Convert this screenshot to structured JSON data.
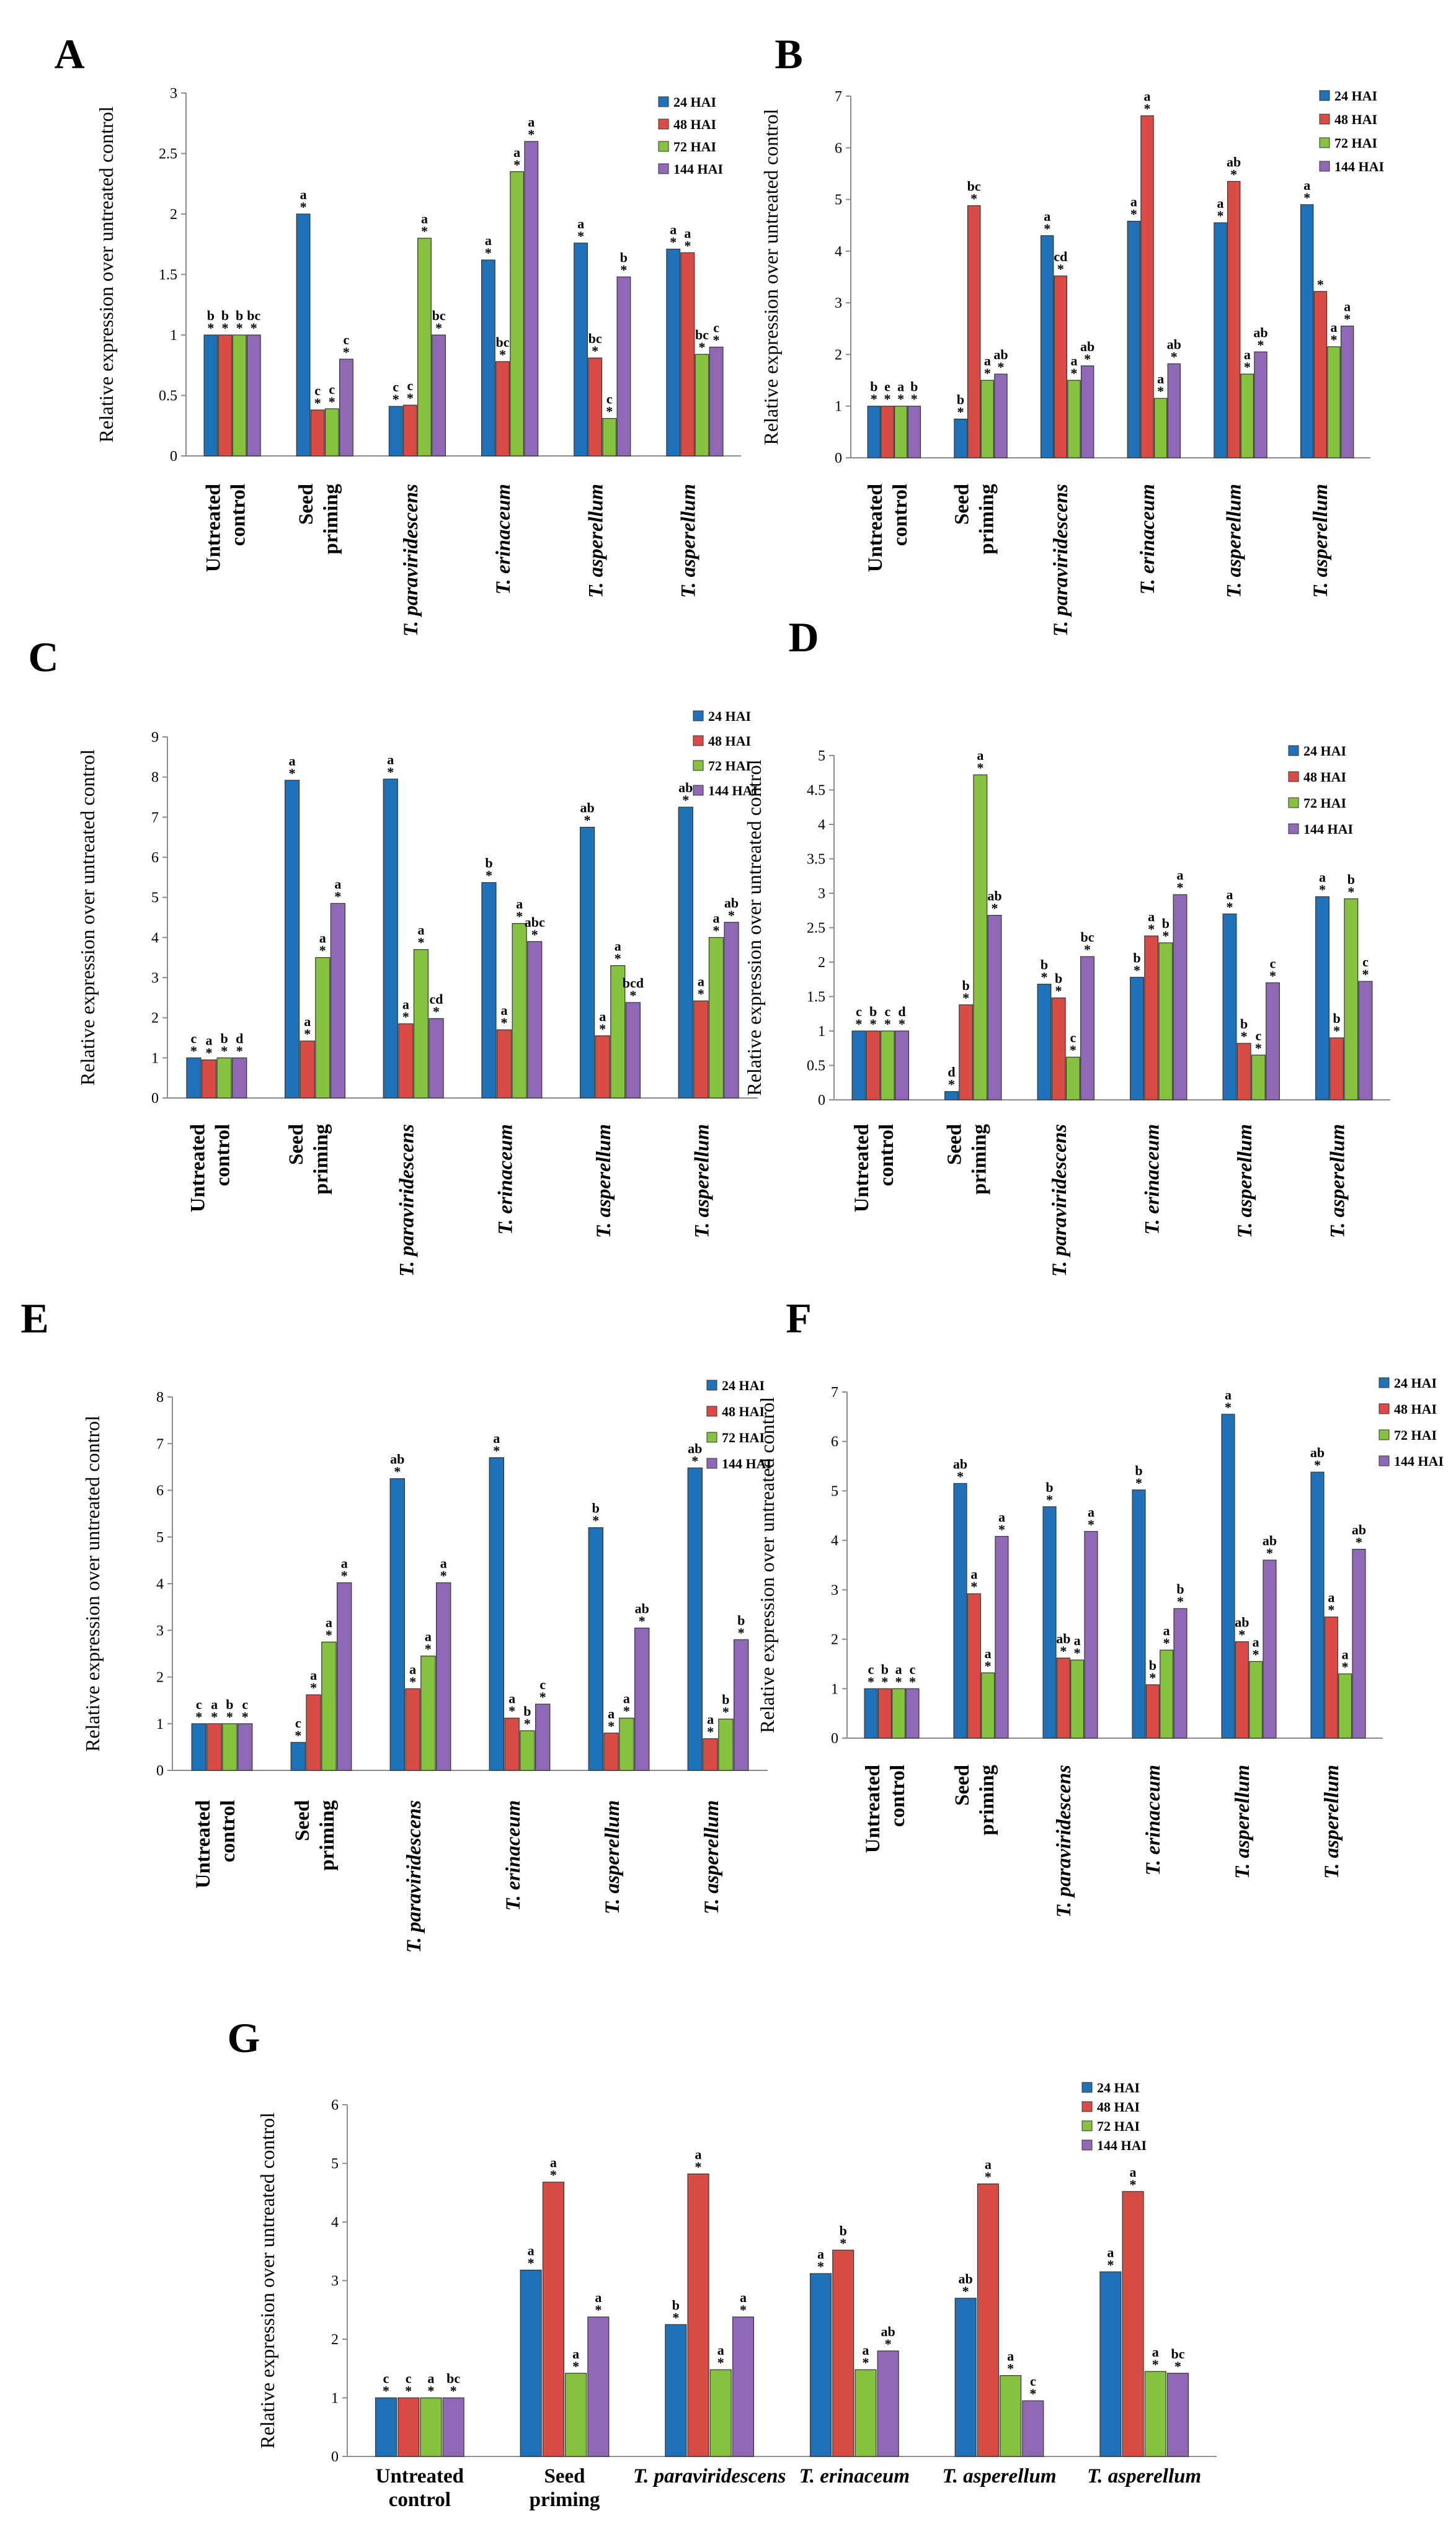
{
  "figure": {
    "ylabel": "Relative expression over untreated control",
    "categories": [
      "Untreated control",
      "Seed priming",
      "T. paraviridescens",
      "T. erinaceum",
      "T. asperellum",
      "T. asperellum"
    ],
    "category_lines": [
      [
        "Untreated",
        "control"
      ],
      [
        "Seed",
        "priming"
      ],
      [
        "T. paraviridescens"
      ],
      [
        "T. erinaceum"
      ],
      [
        "T. asperellum"
      ],
      [
        "T. asperellum"
      ]
    ],
    "legend": [
      "24 HAI",
      "48 HAI",
      "72 HAI",
      "144 HAI"
    ],
    "colors": {
      "24 HAI": "#1f72b8",
      "48 HAI": "#d94b45",
      "72 HAI": "#86c13f",
      "144 HAI": "#8f68b6"
    }
  },
  "chart_data": [
    {
      "panel": "A",
      "type": "bar",
      "ylim": [
        0,
        3
      ],
      "yticks": [
        0,
        0.5,
        1,
        1.5,
        2,
        2.5,
        3
      ],
      "yticklabels": [
        "0",
        "0.5",
        "1",
        "1.5",
        "2",
        "2.5",
        "3"
      ],
      "series": [
        {
          "name": "24 HAI",
          "values": [
            1,
            2.0,
            0.41,
            1.62,
            1.76,
            1.71
          ],
          "letters": [
            "b",
            "a",
            "c",
            "a",
            "a",
            "a"
          ]
        },
        {
          "name": "48 HAI",
          "values": [
            1,
            0.38,
            0.42,
            0.78,
            0.81,
            1.68
          ],
          "letters": [
            "b",
            "c",
            "c",
            "bc",
            "bc",
            "a"
          ]
        },
        {
          "name": "72 HAI",
          "values": [
            1,
            0.39,
            1.8,
            2.35,
            0.31,
            0.84
          ],
          "letters": [
            "b",
            "c",
            "a",
            "a",
            "c",
            "bc"
          ]
        },
        {
          "name": "144 HAI",
          "values": [
            1,
            0.8,
            1.0,
            2.6,
            1.48,
            0.9
          ],
          "letters": [
            "bc",
            "c",
            "bc",
            "a",
            "b",
            "c"
          ]
        }
      ]
    },
    {
      "panel": "B",
      "type": "bar",
      "ylim": [
        0,
        7
      ],
      "yticks": [
        0,
        1,
        2,
        3,
        4,
        5,
        6,
        7
      ],
      "yticklabels": [
        "0",
        "1",
        "2",
        "3",
        "4",
        "5",
        "6",
        "7"
      ],
      "series": [
        {
          "name": "24 HAI",
          "values": [
            1,
            0.75,
            4.3,
            4.58,
            4.55,
            4.9
          ],
          "letters": [
            "b",
            "b",
            "a",
            "a",
            "a",
            "a"
          ]
        },
        {
          "name": "48 HAI",
          "values": [
            1,
            4.88,
            3.52,
            6.62,
            5.35,
            3.22
          ],
          "letters": [
            "e",
            "bc",
            "cd",
            "a",
            "ab",
            ""
          ]
        },
        {
          "name": "72 HAI",
          "values": [
            1,
            1.5,
            1.5,
            1.15,
            1.62,
            2.15
          ],
          "letters": [
            "a",
            "a",
            "a",
            "a",
            "a",
            "a"
          ]
        },
        {
          "name": "144 HAI",
          "values": [
            1,
            1.62,
            1.78,
            1.82,
            2.05,
            2.55
          ],
          "letters": [
            "b",
            "ab",
            "ab",
            "ab",
            "ab",
            "a"
          ]
        }
      ]
    },
    {
      "panel": "C",
      "type": "bar",
      "ylim": [
        0,
        9
      ],
      "yticks": [
        0,
        1,
        2,
        3,
        4,
        5,
        6,
        7,
        8,
        9
      ],
      "yticklabels": [
        "0",
        "1",
        "2",
        "3",
        "4",
        "5",
        "6",
        "7",
        "8",
        "9"
      ],
      "series": [
        {
          "name": "24 HAI",
          "values": [
            1,
            7.92,
            7.95,
            5.37,
            6.75,
            7.25
          ],
          "letters": [
            "c",
            "a",
            "a",
            "b",
            "ab",
            "ab"
          ]
        },
        {
          "name": "48 HAI",
          "values": [
            0.95,
            1.42,
            1.85,
            1.7,
            1.55,
            2.42
          ],
          "letters": [
            "a",
            "a",
            "a",
            "a",
            "a",
            "a"
          ]
        },
        {
          "name": "72 HAI",
          "values": [
            1,
            3.5,
            3.7,
            4.35,
            3.3,
            4.0
          ],
          "letters": [
            "b",
            "a",
            "a",
            "a",
            "a",
            "a"
          ]
        },
        {
          "name": "144 HAI",
          "values": [
            1,
            4.85,
            1.98,
            3.9,
            2.38,
            4.38
          ],
          "letters": [
            "d",
            "a",
            "cd",
            "abc",
            "bcd",
            "ab"
          ]
        }
      ]
    },
    {
      "panel": "D",
      "type": "bar",
      "ylim": [
        0,
        5
      ],
      "yticks": [
        0,
        0.5,
        1,
        1.5,
        2,
        2.5,
        3,
        3.5,
        4,
        4.5,
        5
      ],
      "yticklabels": [
        "0",
        "0.5",
        "1",
        "1.5",
        "2",
        "2.5",
        "3",
        "3.5",
        "4",
        "4.5",
        "5"
      ],
      "series": [
        {
          "name": "24 HAI",
          "values": [
            1,
            0.12,
            1.68,
            1.78,
            2.7,
            2.95
          ],
          "letters": [
            "c",
            "d",
            "b",
            "b",
            "a",
            "a"
          ]
        },
        {
          "name": "48 HAI",
          "values": [
            1,
            1.38,
            1.48,
            2.38,
            0.82,
            0.9
          ],
          "letters": [
            "b",
            "b",
            "b",
            "a",
            "b",
            "b"
          ]
        },
        {
          "name": "72 HAI",
          "values": [
            1,
            4.72,
            0.62,
            2.28,
            0.65,
            2.92
          ],
          "letters": [
            "c",
            "a",
            "c",
            "b",
            "c",
            "b"
          ]
        },
        {
          "name": "144 HAI",
          "values": [
            1,
            2.68,
            2.08,
            2.98,
            1.7,
            1.72
          ],
          "letters": [
            "d",
            "ab",
            "bc",
            "a",
            "c",
            "c"
          ]
        }
      ]
    },
    {
      "panel": "E",
      "type": "bar",
      "ylim": [
        0,
        8
      ],
      "yticks": [
        0,
        1,
        2,
        3,
        4,
        5,
        6,
        7,
        8
      ],
      "yticklabels": [
        "0",
        "1",
        "2",
        "3",
        "4",
        "5",
        "6",
        "7",
        "8"
      ],
      "series": [
        {
          "name": "24 HAI",
          "values": [
            1,
            0.6,
            6.25,
            6.7,
            5.2,
            6.48
          ],
          "letters": [
            "c",
            "c",
            "ab",
            "a",
            "b",
            "ab"
          ]
        },
        {
          "name": "48 HAI",
          "values": [
            1,
            1.62,
            1.75,
            1.12,
            0.8,
            0.68
          ],
          "letters": [
            "a",
            "a",
            "a",
            "a",
            "a",
            "a"
          ]
        },
        {
          "name": "72 HAI",
          "values": [
            1,
            2.75,
            2.45,
            0.85,
            1.12,
            1.1
          ],
          "letters": [
            "b",
            "a",
            "a",
            "b",
            "a",
            "b"
          ]
        },
        {
          "name": "144 HAI",
          "values": [
            1,
            4.02,
            4.02,
            1.42,
            3.05,
            2.8
          ],
          "letters": [
            "c",
            "a",
            "a",
            "c",
            "ab",
            "b"
          ]
        }
      ]
    },
    {
      "panel": "F",
      "type": "bar",
      "ylim": [
        0,
        7
      ],
      "yticks": [
        0,
        1,
        2,
        3,
        4,
        5,
        6,
        7
      ],
      "yticklabels": [
        "0",
        "1",
        "2",
        "3",
        "4",
        "5",
        "6",
        "7"
      ],
      "series": [
        {
          "name": "24 HAI",
          "values": [
            1,
            5.15,
            4.68,
            5.02,
            6.55,
            5.38
          ],
          "letters": [
            "c",
            "ab",
            "b",
            "b",
            "a",
            "ab"
          ]
        },
        {
          "name": "48 HAI",
          "values": [
            1,
            2.92,
            1.62,
            1.08,
            1.95,
            2.45
          ],
          "letters": [
            "b",
            "a",
            "ab",
            "b",
            "ab",
            "a"
          ]
        },
        {
          "name": "72 HAI",
          "values": [
            1,
            1.32,
            1.58,
            1.78,
            1.55,
            1.3
          ],
          "letters": [
            "a",
            "a",
            "a",
            "a",
            "a",
            "a"
          ]
        },
        {
          "name": "144 HAI",
          "values": [
            1,
            4.08,
            4.18,
            2.62,
            3.6,
            3.82
          ],
          "letters": [
            "c",
            "a",
            "a",
            "b",
            "ab",
            "ab"
          ]
        }
      ]
    },
    {
      "panel": "G",
      "type": "bar",
      "ylim": [
        0,
        6
      ],
      "yticks": [
        0,
        1,
        2,
        3,
        4,
        5,
        6
      ],
      "yticklabels": [
        "0",
        "1",
        "2",
        "3",
        "4",
        "5",
        "6"
      ],
      "series": [
        {
          "name": "24 HAI",
          "values": [
            1,
            3.18,
            2.25,
            3.12,
            2.7,
            3.15
          ],
          "letters": [
            "c",
            "a",
            "b",
            "a",
            "ab",
            "a"
          ]
        },
        {
          "name": "48 HAI",
          "values": [
            1,
            4.68,
            4.82,
            3.52,
            4.65,
            4.52
          ],
          "letters": [
            "c",
            "a",
            "a",
            "b",
            "a",
            "a"
          ]
        },
        {
          "name": "72 HAI",
          "values": [
            1,
            1.42,
            1.48,
            1.48,
            1.38,
            1.45
          ],
          "letters": [
            "a",
            "a",
            "a",
            "a",
            "a",
            "a"
          ]
        },
        {
          "name": "144 HAI",
          "values": [
            1,
            2.38,
            2.38,
            1.8,
            0.95,
            1.42
          ],
          "letters": [
            "bc",
            "a",
            "a",
            "ab",
            "c",
            "bc"
          ]
        }
      ]
    }
  ]
}
